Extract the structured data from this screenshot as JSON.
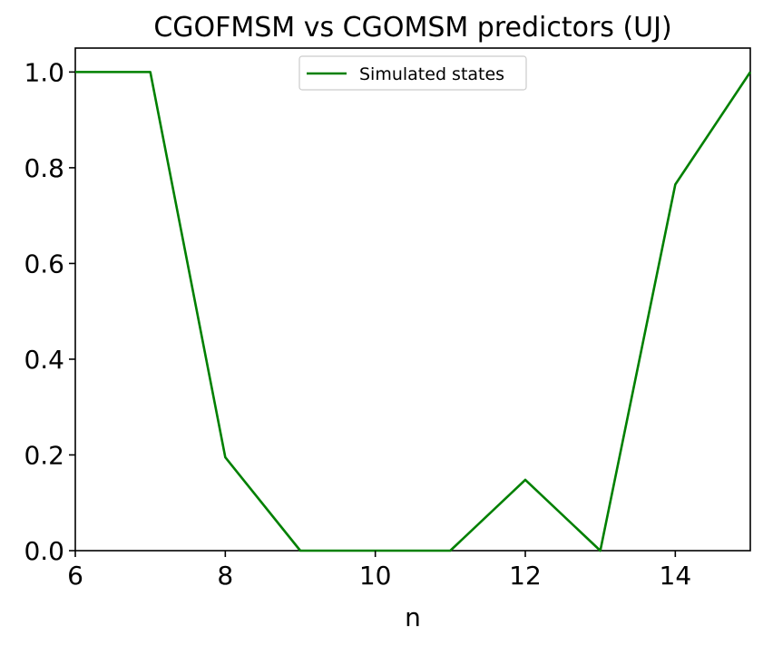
{
  "chart_data": {
    "type": "line",
    "title": "CGOFMSM vs CGOMSM predictors (UJ)",
    "xlabel": "n",
    "ylabel": "",
    "xlim": [
      6,
      15
    ],
    "ylim": [
      0,
      1.05
    ],
    "x_ticks": [
      6,
      8,
      10,
      12,
      14
    ],
    "x_tick_labels": [
      "6",
      "8",
      "10",
      "12",
      "14"
    ],
    "y_ticks": [
      0.0,
      0.2,
      0.4,
      0.6,
      0.8,
      1.0
    ],
    "y_tick_labels": [
      "0.0",
      "0.2",
      "0.4",
      "0.6",
      "0.8",
      "1.0"
    ],
    "grid": false,
    "legend_position": "top-center",
    "series": [
      {
        "name": "Simulated states",
        "color": "#008000",
        "x": [
          6,
          7,
          8,
          9,
          10,
          11,
          12,
          13,
          14,
          15
        ],
        "y": [
          1.0,
          1.0,
          0.195,
          0.0,
          0.0,
          0.0,
          0.148,
          0.0,
          0.765,
          1.0
        ]
      }
    ]
  }
}
